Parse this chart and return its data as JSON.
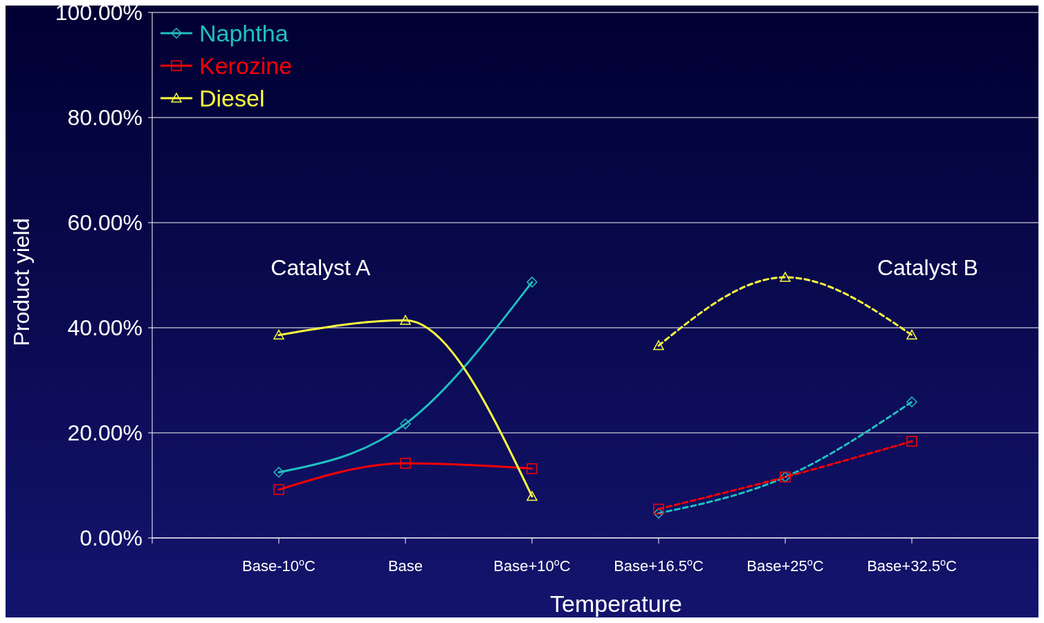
{
  "chart_data": {
    "type": "line",
    "xlabel": "Temperature",
    "ylabel": "Product yield",
    "annotations": [
      "Catalyst A",
      "Catalyst B"
    ],
    "categories": [
      "Base-10$^{o}$C",
      "Base",
      "Base+10$^{o}$C",
      "Base+16.5$^{o}$C",
      "Base+25$^{o}$C",
      "Base+32.5$^{o}$C"
    ],
    "ylim": [
      0,
      100
    ],
    "yticks": [
      {
        "value": 0,
        "label": "0.00%"
      },
      {
        "value": 20,
        "label": "20.00%"
      },
      {
        "value": 40,
        "label": "40.00%"
      },
      {
        "value": 60,
        "label": "60.00%"
      },
      {
        "value": 80,
        "label": "80.00%"
      },
      {
        "value": 100,
        "label": "100.00%"
      }
    ],
    "grid": "y",
    "legend": "top left",
    "series": [
      {
        "name": "Naphtha",
        "color": "#20c0c0",
        "marker": "diamond",
        "line_style": "solid",
        "values": [
          12.5,
          21.7,
          48.7,
          null,
          null,
          null
        ]
      },
      {
        "name": "Kerozine",
        "color": "#ff0000",
        "marker": "square",
        "line_style": "solid",
        "values": [
          9.2,
          14.2,
          13.2,
          null,
          null,
          null
        ]
      },
      {
        "name": "Diesel",
        "color": "#ffff40",
        "marker": "triangle",
        "line_style": "solid",
        "values": [
          38.6,
          41.4,
          7.9,
          null,
          null,
          null
        ]
      },
      {
        "color": "#20c0c0",
        "marker": "diamond",
        "line_style": "dashed",
        "values": [
          null,
          null,
          null,
          4.7,
          11.6,
          25.9
        ]
      },
      {
        "color": "#ff0000",
        "marker": "square",
        "line_style": "dashed",
        "values": [
          null,
          null,
          null,
          5.5,
          11.6,
          18.4
        ]
      },
      {
        "color": "#ffff40",
        "marker": "triangle",
        "line_style": "dashed",
        "values": [
          null,
          null,
          null,
          36.6,
          49.6,
          38.6
        ]
      }
    ]
  }
}
